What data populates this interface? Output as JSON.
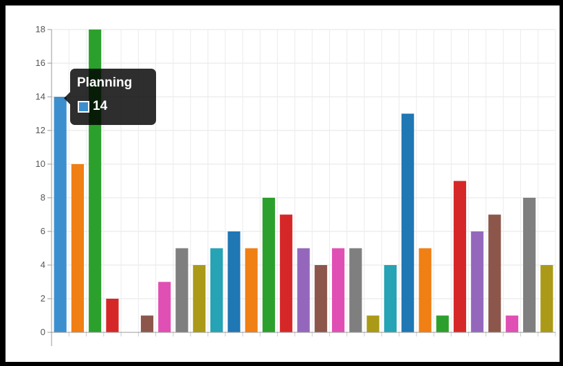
{
  "chart_data": {
    "type": "bar",
    "ylim": [
      0,
      18
    ],
    "y_ticks": [
      0,
      2,
      4,
      6,
      8,
      10,
      12,
      14,
      16,
      18
    ],
    "grid": true,
    "values": [
      14,
      10,
      18,
      2,
      0,
      1,
      3,
      5,
      4,
      5,
      6,
      5,
      8,
      7,
      5,
      4,
      5,
      5,
      1,
      4,
      13,
      5,
      1,
      9,
      6,
      7,
      1,
      8,
      4
    ],
    "colors": [
      "#3c8fce",
      "#f07f14",
      "#2ca02c",
      "#d62728",
      "#9467bd",
      "#8c564b",
      "#e04fb4",
      "#7f7f7f",
      "#aa9a17",
      "#26a3b5",
      "#1f77b4",
      "#f07f14",
      "#2ca02c",
      "#d62728",
      "#9467bd",
      "#8c564b",
      "#e04fb4",
      "#7f7f7f",
      "#aa9a17",
      "#26a3b5",
      "#1f77b4",
      "#f07f14",
      "#2ca02c",
      "#d62728",
      "#9467bd",
      "#8c564b",
      "#e04fb4",
      "#7f7f7f",
      "#aa9a17"
    ]
  },
  "tooltip": {
    "title": "Planning",
    "value": "14",
    "color": "#3c8fce"
  }
}
